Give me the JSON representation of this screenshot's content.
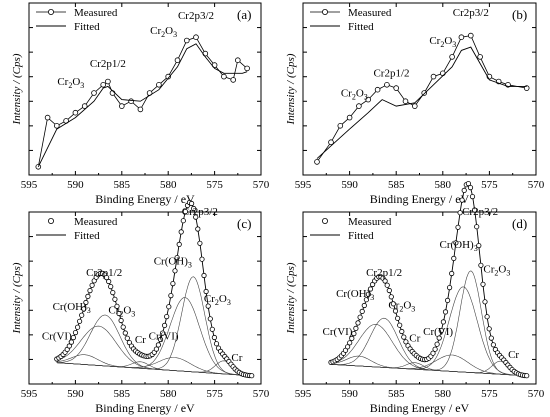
{
  "colors": {
    "ink": "#000000",
    "background": "#ffffff",
    "component": "#444444"
  },
  "chart_data": [
    {
      "type": "line",
      "panel_label": "(a)",
      "xlabel": "Binding Energy / eV",
      "ylabel": "Intensity / (Cps)",
      "xlim": [
        595,
        570
      ],
      "xticks": [
        "595",
        "590",
        "585",
        "580",
        "575",
        "570"
      ],
      "legend": {
        "position": "top-left",
        "entries": [
          "Measured",
          "Fitted"
        ]
      },
      "series": [
        {
          "name": "Measured",
          "style": "line-circle-markers",
          "x": [
            594.0,
            593.0,
            592.0,
            591.0,
            590.0,
            589.0,
            588.0,
            587.0,
            586.5,
            586.0,
            585.0,
            584.0,
            583.0,
            582.0,
            581.0,
            580.0,
            579.0,
            578.0,
            577.0,
            576.0,
            575.0,
            574.0,
            573.0,
            572.5,
            571.5
          ],
          "y": [
            0.05,
            0.35,
            0.3,
            0.33,
            0.38,
            0.42,
            0.5,
            0.55,
            0.57,
            0.5,
            0.42,
            0.45,
            0.4,
            0.5,
            0.55,
            0.6,
            0.7,
            0.82,
            0.84,
            0.74,
            0.67,
            0.6,
            0.58,
            0.7,
            0.65
          ]
        },
        {
          "name": "Fitted",
          "style": "line",
          "x": [
            594.0,
            592.0,
            590.0,
            588.0,
            587.0,
            586.5,
            585.0,
            583.0,
            581.0,
            579.0,
            578.0,
            577.0,
            576.0,
            575.0,
            574.0,
            572.0,
            571.5
          ],
          "y": [
            0.05,
            0.28,
            0.35,
            0.45,
            0.53,
            0.54,
            0.46,
            0.45,
            0.52,
            0.66,
            0.77,
            0.8,
            0.72,
            0.65,
            0.62,
            0.62,
            0.63
          ]
        }
      ],
      "annotations": [
        {
          "text": "Cr2p1/2",
          "x": 586.5,
          "y": 0.66
        },
        {
          "text": "Cr2p3/2",
          "x": 577.0,
          "y": 0.95
        },
        {
          "text_base": "Cr",
          "sub1": "2",
          "mid": "O",
          "sub2": "3",
          "x": 590.5,
          "y": 0.55
        },
        {
          "text_base": "Cr",
          "sub1": "2",
          "mid": "O",
          "sub2": "3",
          "x": 580.5,
          "y": 0.86
        }
      ]
    },
    {
      "type": "line",
      "panel_label": "(b)",
      "xlabel": "Binding Energy / eV",
      "ylabel": "Intensity / (Cps)",
      "xlim": [
        595,
        570
      ],
      "xticks": [
        "595",
        "590",
        "585",
        "580",
        "575",
        "570"
      ],
      "legend": {
        "position": "top-left",
        "entries": [
          "Measured",
          "Fitted"
        ]
      },
      "series": [
        {
          "name": "Measured",
          "style": "line-circle-markers",
          "x": [
            593.5,
            592.0,
            591.0,
            590.0,
            589.0,
            588.0,
            587.0,
            586.0,
            585.0,
            584.0,
            583.0,
            582.0,
            581.0,
            580.0,
            579.0,
            578.0,
            577.0,
            576.0,
            575.0,
            574.0,
            573.0,
            571.0
          ],
          "y": [
            0.08,
            0.2,
            0.3,
            0.35,
            0.42,
            0.46,
            0.52,
            0.55,
            0.53,
            0.45,
            0.42,
            0.5,
            0.6,
            0.62,
            0.72,
            0.84,
            0.85,
            0.72,
            0.6,
            0.57,
            0.55,
            0.53
          ]
        },
        {
          "name": "Fitted",
          "style": "line",
          "x": [
            593.5,
            590.0,
            588.0,
            586.5,
            585.0,
            583.0,
            581.0,
            579.0,
            578.0,
            577.0,
            576.0,
            575.0,
            573.0,
            571.0
          ],
          "y": [
            0.1,
            0.28,
            0.38,
            0.46,
            0.42,
            0.44,
            0.55,
            0.66,
            0.76,
            0.78,
            0.68,
            0.58,
            0.54,
            0.54
          ]
        }
      ],
      "annotations": [
        {
          "text": "Cr2p1/2",
          "x": 585.5,
          "y": 0.6
        },
        {
          "text": "Cr2p3/2",
          "x": 577.0,
          "y": 0.97
        },
        {
          "text_base": "Cr",
          "sub1": "2",
          "mid": "O",
          "sub2": "3",
          "x": 589.5,
          "y": 0.48
        },
        {
          "text_base": "Cr",
          "sub1": "2",
          "mid": "O",
          "sub2": "3",
          "x": 580.0,
          "y": 0.8
        }
      ]
    },
    {
      "type": "line",
      "panel_label": "(c)",
      "xlabel": "Binding Energy / eV",
      "ylabel": "Intensity / (Cps)",
      "xlim": [
        595,
        570
      ],
      "xticks": [
        "595",
        "590",
        "585",
        "580",
        "575",
        "570"
      ],
      "legend": {
        "position": "top-left",
        "entries": [
          "Measured",
          "Fitted"
        ]
      },
      "series": [
        {
          "name": "Measured",
          "style": "circle-markers",
          "x0": 592.0,
          "x1": 571.0,
          "count": 95
        },
        {
          "name": "Fitted",
          "style": "line",
          "x0": 592.0,
          "x1": 571.0
        }
      ],
      "peaks": [
        {
          "center": 586.8,
          "height": 0.31,
          "width": 1.6
        },
        {
          "center": 587.5,
          "height": 0.24,
          "width": 1.9
        },
        {
          "center": 589.0,
          "height": 0.06,
          "width": 1.4
        },
        {
          "center": 583.0,
          "height": 0.04,
          "width": 0.9
        },
        {
          "center": 577.3,
          "height": 0.58,
          "width": 1.25
        },
        {
          "center": 578.2,
          "height": 0.45,
          "width": 1.6
        },
        {
          "center": 579.3,
          "height": 0.08,
          "width": 1.7
        },
        {
          "center": 574.0,
          "height": 0.08,
          "width": 0.9
        }
      ],
      "baseline": {
        "low": 0.05,
        "high": 0.13
      },
      "annotations": [
        {
          "text": "Cr2p3/2",
          "x": 576.6,
          "y": 1.03
        },
        {
          "text": "Cr2p1/2",
          "x": 586.9,
          "y": 0.66
        },
        {
          "text": "Cr(OH)",
          "sub1": "3",
          "x": 579.5,
          "y": 0.73
        },
        {
          "text": "Cr(OH)",
          "sub1": "3",
          "x": 590.4,
          "y": 0.45
        },
        {
          "text_base": "Cr",
          "sub1": "2",
          "mid": "O",
          "sub2": "3",
          "x": 585.0,
          "y": 0.43
        },
        {
          "text_base": "Cr",
          "sub1": "2",
          "mid": "O",
          "sub2": "3",
          "x": 574.7,
          "y": 0.5
        },
        {
          "text": "Cr(VI)",
          "x": 592.0,
          "y": 0.27
        },
        {
          "text": "Cr(VI)",
          "x": 580.5,
          "y": 0.27
        },
        {
          "text": "Cr",
          "x": 583.0,
          "y": 0.25
        },
        {
          "text": "Cr",
          "x": 572.6,
          "y": 0.14
        }
      ]
    },
    {
      "type": "line",
      "panel_label": "(d)",
      "xlabel": "Binding Energy / eV",
      "ylabel": "Intensity / (Cps)",
      "xlim": [
        595,
        570
      ],
      "xticks": [
        "595",
        "590",
        "585",
        "580",
        "575",
        "570"
      ],
      "legend": {
        "position": "top-left",
        "entries": [
          "Measured",
          "Fitted"
        ]
      },
      "series": [
        {
          "name": "Measured",
          "style": "circle-markers",
          "x0": 592.0,
          "x1": 571.0,
          "count": 95
        },
        {
          "name": "Fitted",
          "style": "line",
          "x0": 592.0,
          "x1": 571.0
        }
      ],
      "peaks": [
        {
          "center": 586.3,
          "height": 0.3,
          "width": 1.5
        },
        {
          "center": 587.2,
          "height": 0.26,
          "width": 1.8
        },
        {
          "center": 589.0,
          "height": 0.06,
          "width": 1.3
        },
        {
          "center": 583.0,
          "height": 0.04,
          "width": 0.9
        },
        {
          "center": 577.0,
          "height": 0.62,
          "width": 1.15
        },
        {
          "center": 577.8,
          "height": 0.52,
          "width": 1.5
        },
        {
          "center": 579.0,
          "height": 0.1,
          "width": 1.7
        },
        {
          "center": 573.8,
          "height": 0.08,
          "width": 0.9
        }
      ],
      "baseline": {
        "low": 0.05,
        "high": 0.12
      },
      "annotations": [
        {
          "text": "Cr2p3/2",
          "x": 576.0,
          "y": 1.03
        },
        {
          "text": "Cr2p1/2",
          "x": 586.3,
          "y": 0.66
        },
        {
          "text": "Cr(OH)",
          "sub1": "3",
          "x": 578.3,
          "y": 0.83
        },
        {
          "text": "Cr(OH)",
          "sub1": "3",
          "x": 589.4,
          "y": 0.53
        },
        {
          "text_base": "Cr",
          "sub1": "2",
          "mid": "O",
          "sub2": "3",
          "x": 584.4,
          "y": 0.46
        },
        {
          "text_base": "Cr",
          "sub1": "2",
          "mid": "O",
          "sub2": "3",
          "x": 574.2,
          "y": 0.68
        },
        {
          "text": "Cr(VI)",
          "x": 591.3,
          "y": 0.3
        },
        {
          "text": "Cr(VI)",
          "x": 580.5,
          "y": 0.3
        },
        {
          "text": "Cr",
          "x": 583.0,
          "y": 0.26
        },
        {
          "text": "Cr",
          "x": 572.4,
          "y": 0.16
        }
      ]
    }
  ]
}
